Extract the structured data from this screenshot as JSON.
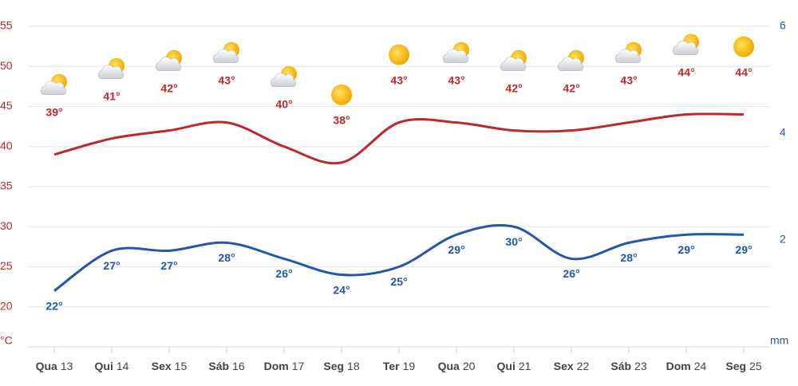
{
  "chart_data": {
    "type": "line",
    "categories": [
      [
        "Qua",
        "13"
      ],
      [
        "Qui",
        "14"
      ],
      [
        "Sex",
        "15"
      ],
      [
        "Sáb",
        "16"
      ],
      [
        "Dom",
        "17"
      ],
      [
        "Seg",
        "18"
      ],
      [
        "Ter",
        "19"
      ],
      [
        "Qua",
        "20"
      ],
      [
        "Qui",
        "21"
      ],
      [
        "Sex",
        "22"
      ],
      [
        "Sáb",
        "23"
      ],
      [
        "Dom",
        "24"
      ],
      [
        "Seg",
        "25"
      ]
    ],
    "series": [
      {
        "color": "#c0282d",
        "values": [
          39,
          41,
          42,
          43,
          40,
          38,
          43,
          43,
          42,
          42,
          43,
          44,
          44
        ],
        "value_labels": [
          "39°",
          "41°",
          "42°",
          "43°",
          "40°",
          "38°",
          "43°",
          "43°",
          "42°",
          "42°",
          "43°",
          "44°",
          "44°"
        ]
      },
      {
        "color": "#2457a8",
        "values": [
          22,
          27,
          27,
          28,
          26,
          24,
          25,
          29,
          30,
          26,
          28,
          29,
          29
        ],
        "value_labels": [
          "22°",
          "27°",
          "27°",
          "28°",
          "26°",
          "24°",
          "25°",
          "29°",
          "30°",
          "26°",
          "28°",
          "29°",
          "29°"
        ]
      }
    ],
    "icons": [
      "partly-cloudy",
      "partly-cloudy",
      "partly-cloudy",
      "partly-cloudy",
      "partly-cloudy",
      "sunny",
      "sunny",
      "partly-cloudy",
      "partly-cloudy",
      "partly-cloudy",
      "partly-cloudy",
      "partly-cloudy",
      "sunny"
    ],
    "ylim": [
      15,
      55
    ],
    "yticks": [
      20,
      25,
      30,
      35,
      40,
      45,
      50,
      55
    ],
    "ylabel": "°C",
    "y2lim": [
      0,
      6
    ],
    "y2ticks": [
      2,
      4,
      6
    ],
    "y2label": "mm",
    "grid": true
  }
}
